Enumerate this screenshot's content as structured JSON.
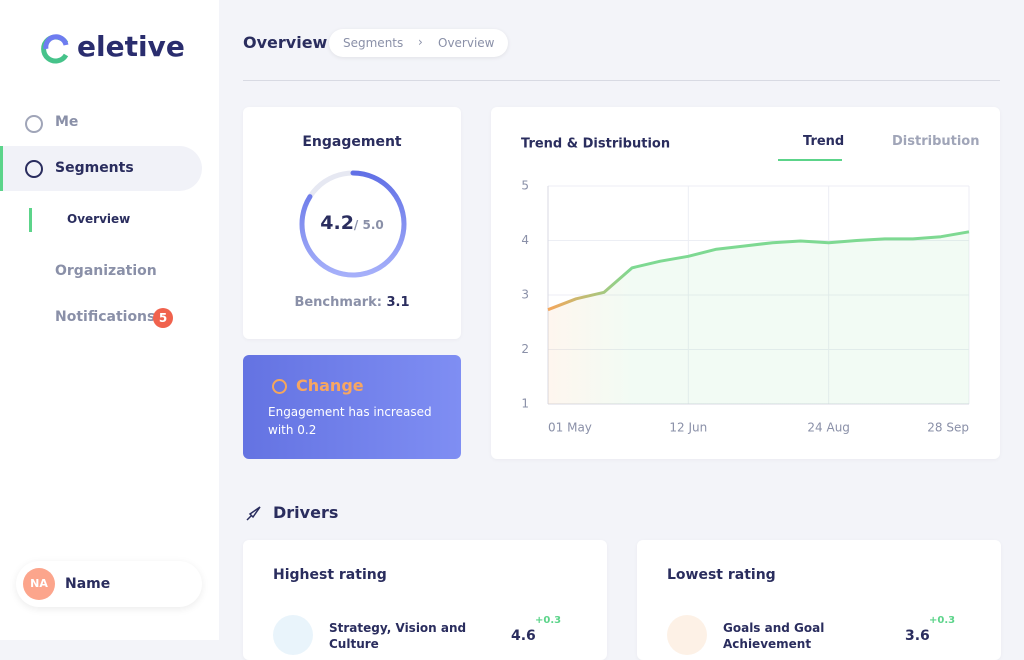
{
  "sidebar": {
    "logo": "eletive",
    "nav": [
      {
        "label": "Me"
      },
      {
        "label": "Segments"
      },
      {
        "label": "Overview"
      },
      {
        "label": "Organization"
      },
      {
        "label": "Notifications",
        "badge": "5"
      }
    ],
    "user": {
      "initials": "NA",
      "name": "Name"
    }
  },
  "header": {
    "title": "Overview",
    "breadcrumb": [
      "Segments",
      "Overview"
    ]
  },
  "engagement": {
    "title": "Engagement",
    "score": 4.2,
    "max": {
      "value": 5,
      "label": "/ 5.0"
    },
    "benchmark_label": "Benchmark:",
    "benchmark": 3.1
  },
  "change": {
    "title": "Change",
    "text": "Engagement has increased with 0.2"
  },
  "tabs": [
    "Trend",
    "Distribution"
  ],
  "chart_data": {
    "type": "line",
    "title": "Trend & Distribution",
    "categories": [
      "01 May",
      null,
      null,
      null,
      null,
      "12 Jun",
      null,
      null,
      null,
      null,
      "24 Aug",
      null,
      null,
      null,
      null,
      "28 Sep"
    ],
    "series": [
      {
        "name": "Engagement",
        "colors": [
          "#f5a65b",
          "#7ed992"
        ],
        "values": [
          2.73,
          2.93,
          3.05,
          3.5,
          3.62,
          3.71,
          3.84,
          3.9,
          3.96,
          3.99,
          3.96,
          4.0,
          4.03,
          4.03,
          4.07,
          4.16
        ]
      }
    ],
    "ylim": [
      1,
      5
    ],
    "yticks": [
      1,
      2,
      3,
      4,
      5
    ],
    "grid": true
  },
  "drivers": {
    "title": "Drivers",
    "cards": [
      {
        "title": "Highest rating",
        "item": "Strategy, Vision and Culture",
        "score": "4.6",
        "change": "+0.3"
      },
      {
        "title": "Lowest rating",
        "item": "Goals and Goal Achievement",
        "score": "3.6",
        "change": "+0.3"
      }
    ]
  }
}
